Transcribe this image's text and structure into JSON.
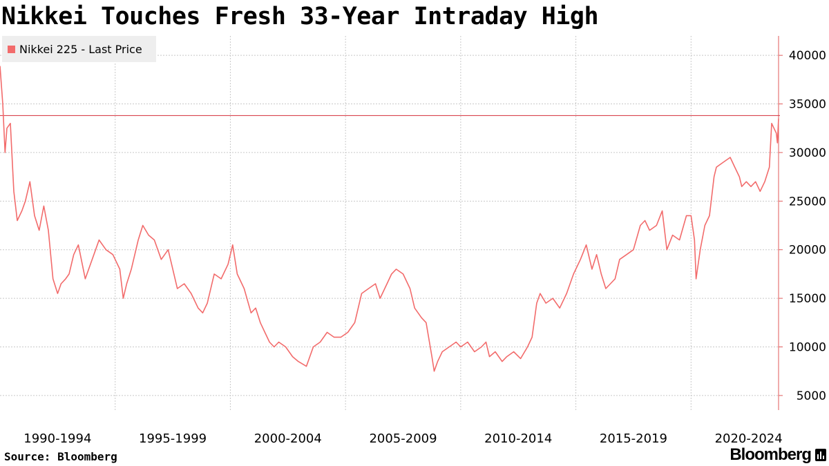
{
  "header": {
    "title": "Nikkei Touches Fresh 33-Year Intraday High"
  },
  "footer": {
    "source": "Source: Bloomberg",
    "brand": "Bloomberg"
  },
  "colors": {
    "series": "#f26b6b",
    "grid": "#c8c8c8",
    "axis": "#e05a5a",
    "legend_bg": "#eeeeee",
    "text": "#000000"
  },
  "chart_data": {
    "type": "line",
    "title": "Nikkei Touches Fresh 33-Year Intraday High",
    "xlabel": "",
    "ylabel": "",
    "ylim": [
      3500,
      42000
    ],
    "xlim": [
      1990.0,
      2023.8
    ],
    "y_ticks": [
      5000,
      10000,
      15000,
      20000,
      25000,
      30000,
      35000,
      40000
    ],
    "y_tick_labels": [
      "5000",
      "10000",
      "15000",
      "20000",
      "25000",
      "30000",
      "35000",
      "40000"
    ],
    "x_tick_labels": [
      "1990-1994",
      "1995-1999",
      "2000-2004",
      "2005-2009",
      "2010-2014",
      "2015-2019",
      "2020-2024"
    ],
    "x_gridlines": [
      1995,
      2000,
      2005,
      2010,
      2015,
      2020
    ],
    "grid": true,
    "y_axis_side": "right",
    "legend": {
      "position": "top-left",
      "entries": [
        "Nikkei 225 - Last Price"
      ]
    },
    "reference_line": {
      "value": 33800,
      "label": ""
    },
    "series": [
      {
        "name": "Nikkei 225 - Last Price",
        "x": [
          1990.0,
          1990.12,
          1990.22,
          1990.3,
          1990.45,
          1990.6,
          1990.75,
          1990.95,
          1991.1,
          1991.3,
          1991.5,
          1991.7,
          1991.9,
          1992.1,
          1992.3,
          1992.5,
          1992.65,
          1992.85,
          1993.0,
          1993.2,
          1993.4,
          1993.7,
          1994.0,
          1994.3,
          1994.6,
          1994.9,
          1995.2,
          1995.35,
          1995.5,
          1995.7,
          1996.0,
          1996.2,
          1996.45,
          1996.7,
          1997.0,
          1997.3,
          1997.5,
          1997.7,
          1998.0,
          1998.3,
          1998.6,
          1998.8,
          1999.0,
          1999.3,
          1999.6,
          1999.9,
          2000.1,
          2000.3,
          2000.6,
          2000.9,
          2001.1,
          2001.3,
          2001.5,
          2001.7,
          2001.9,
          2002.1,
          2002.4,
          2002.7,
          2002.95,
          2003.3,
          2003.6,
          2003.9,
          2004.2,
          2004.5,
          2004.8,
          2005.1,
          2005.4,
          2005.7,
          2006.0,
          2006.3,
          2006.5,
          2006.8,
          2007.0,
          2007.2,
          2007.5,
          2007.8,
          2008.0,
          2008.3,
          2008.5,
          2008.75,
          2008.85,
          2009.0,
          2009.2,
          2009.5,
          2009.8,
          2010.0,
          2010.3,
          2010.6,
          2010.9,
          2011.1,
          2011.25,
          2011.5,
          2011.8,
          2012.0,
          2012.3,
          2012.6,
          2012.9,
          2013.1,
          2013.3,
          2013.45,
          2013.7,
          2014.0,
          2014.3,
          2014.6,
          2014.9,
          2015.2,
          2015.45,
          2015.7,
          2015.9,
          2016.1,
          2016.3,
          2016.5,
          2016.7,
          2016.9,
          2017.2,
          2017.5,
          2017.8,
          2018.0,
          2018.2,
          2018.5,
          2018.75,
          2018.95,
          2019.2,
          2019.5,
          2019.8,
          2020.0,
          2020.15,
          2020.22,
          2020.4,
          2020.6,
          2020.8,
          2021.0,
          2021.1,
          2021.4,
          2021.7,
          2021.9,
          2022.1,
          2022.2,
          2022.4,
          2022.6,
          2022.8,
          2023.0,
          2023.2,
          2023.4,
          2023.5,
          2023.6,
          2023.7,
          2023.75,
          2023.8
        ],
        "values": [
          38900,
          35000,
          30000,
          32500,
          33000,
          26000,
          23000,
          24000,
          25000,
          27000,
          23500,
          22000,
          24500,
          22000,
          17000,
          15500,
          16500,
          17000,
          17500,
          19500,
          20500,
          17000,
          19000,
          21000,
          20000,
          19500,
          18000,
          15000,
          16500,
          18000,
          21000,
          22500,
          21500,
          21000,
          19000,
          20000,
          18000,
          16000,
          16500,
          15500,
          14000,
          13500,
          14500,
          17500,
          17000,
          18500,
          20500,
          17500,
          16000,
          13500,
          14000,
          12500,
          11500,
          10500,
          10000,
          10500,
          10000,
          9000,
          8500,
          8000,
          10000,
          10500,
          11500,
          11000,
          11000,
          11500,
          12500,
          15500,
          16000,
          16500,
          15000,
          16500,
          17500,
          18000,
          17500,
          16000,
          14000,
          13000,
          12500,
          9000,
          7500,
          8500,
          9500,
          10000,
          10500,
          10000,
          10500,
          9500,
          10000,
          10500,
          9000,
          9500,
          8500,
          9000,
          9500,
          8800,
          10000,
          11000,
          14500,
          15500,
          14500,
          15000,
          14000,
          15500,
          17500,
          19000,
          20500,
          18000,
          19500,
          17500,
          16000,
          16500,
          17000,
          19000,
          19500,
          20000,
          22500,
          23000,
          22000,
          22500,
          24000,
          20000,
          21500,
          21000,
          23500,
          23500,
          21000,
          17000,
          20000,
          22500,
          23500,
          27500,
          28500,
          29000,
          29500,
          28500,
          27500,
          26500,
          27000,
          26500,
          27000,
          26000,
          27000,
          28500,
          33000,
          32500,
          32000,
          31000,
          33500
        ]
      }
    ]
  }
}
